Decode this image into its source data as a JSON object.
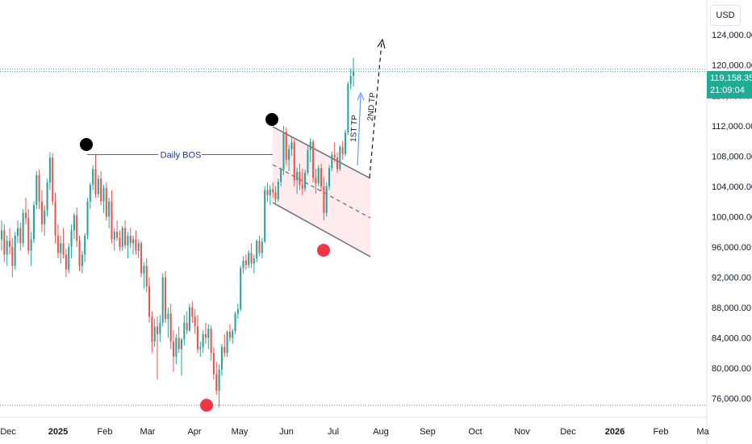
{
  "chart_data": {
    "type": "candlestick",
    "currency": "USD",
    "y_ticks": [
      "124,000.00",
      "120,000.00",
      "116,000.00",
      "112,000.00",
      "108,000.00",
      "104,000.00",
      "100,000.00",
      "96,000.00",
      "92,000.00",
      "88,000.00",
      "84,000.00",
      "80,000.00",
      "76,000.00"
    ],
    "y_tick_values": [
      124000,
      120000,
      116000,
      112000,
      108000,
      104000,
      100000,
      96000,
      92000,
      88000,
      84000,
      80000,
      76000
    ],
    "ylim": [
      73500,
      128500
    ],
    "x_ticks": [
      {
        "label": "Dec",
        "bold": false
      },
      {
        "label": "2025",
        "bold": true
      },
      {
        "label": "Feb",
        "bold": false
      },
      {
        "label": "Mar",
        "bold": false
      },
      {
        "label": "Apr",
        "bold": false
      },
      {
        "label": "May",
        "bold": false
      },
      {
        "label": "Jun",
        "bold": false
      },
      {
        "label": "Jul",
        "bold": false
      },
      {
        "label": "Aug",
        "bold": false
      },
      {
        "label": "Sep",
        "bold": false
      },
      {
        "label": "Oct",
        "bold": false
      },
      {
        "label": "Nov",
        "bold": false
      },
      {
        "label": "Dec",
        "bold": false
      },
      {
        "label": "2026",
        "bold": true
      },
      {
        "label": "Feb",
        "bold": false
      },
      {
        "label": "Ma",
        "bold": false
      }
    ],
    "last_price": "119,158.35",
    "countdown": "21:09:04",
    "last_price_value": 119158,
    "low_line_value": 75100,
    "annotations": {
      "daily_bos": "Daily BOS",
      "tp1": "1ST TP",
      "tp2": "2ND TP",
      "bos_level": 108200
    },
    "colors": {
      "up": "#26a69a",
      "down": "#ef5350",
      "price_tag": "#22ab94",
      "channel_fill": "#fde8ea",
      "marker_black": "#000000",
      "marker_red": "#f23645",
      "bos_line": "#2962ff"
    },
    "candles": [
      [
        97000,
        99500,
        95500,
        98200
      ],
      [
        98200,
        99000,
        94000,
        95000
      ],
      [
        95000,
        97500,
        93500,
        96800
      ],
      [
        96800,
        98500,
        95000,
        96000
      ],
      [
        96000,
        97200,
        92000,
        93500
      ],
      [
        93500,
        98000,
        93000,
        97500
      ],
      [
        97500,
        99500,
        96500,
        98500
      ],
      [
        98500,
        99200,
        95500,
        96500
      ],
      [
        96500,
        101000,
        96000,
        100500
      ],
      [
        100500,
        102500,
        99000,
        99800
      ],
      [
        99800,
        101000,
        95000,
        95500
      ],
      [
        95500,
        98000,
        93500,
        97000
      ],
      [
        97000,
        102000,
        96500,
        101500
      ],
      [
        101500,
        106000,
        101000,
        105500
      ],
      [
        105500,
        106200,
        101000,
        102000
      ],
      [
        102000,
        103500,
        98000,
        99000
      ],
      [
        99000,
        101500,
        97500,
        100800
      ],
      [
        100800,
        105000,
        100000,
        104500
      ],
      [
        104500,
        108500,
        103500,
        107800
      ],
      [
        107800,
        108400,
        101500,
        102000
      ],
      [
        102000,
        103200,
        96500,
        97500
      ],
      [
        97500,
        99000,
        94500,
        95200
      ],
      [
        95200,
        97500,
        93800,
        96500
      ],
      [
        96500,
        98500,
        94500,
        95000
      ],
      [
        95000,
        95800,
        92000,
        93000
      ],
      [
        93000,
        96500,
        92500,
        96000
      ],
      [
        96000,
        99000,
        94500,
        98200
      ],
      [
        98200,
        100500,
        97000,
        100200
      ],
      [
        100200,
        101200,
        96000,
        96800
      ],
      [
        96800,
        97500,
        92800,
        93500
      ],
      [
        93500,
        95500,
        92500,
        95000
      ],
      [
        95000,
        97800,
        94000,
        97500
      ],
      [
        97500,
        102500,
        97000,
        102000
      ],
      [
        102000,
        104500,
        101000,
        104200
      ],
      [
        104200,
        106800,
        103500,
        106300
      ],
      [
        106300,
        108300,
        102500,
        103000
      ],
      [
        103000,
        105500,
        102500,
        105000
      ],
      [
        105000,
        106000,
        101500,
        102000
      ],
      [
        102000,
        104200,
        100500,
        103800
      ],
      [
        103800,
        104500,
        99500,
        100000
      ],
      [
        100000,
        102500,
        98500,
        102000
      ],
      [
        102000,
        103500,
        96500,
        97000
      ],
      [
        97000,
        98500,
        95500,
        98000
      ],
      [
        98000,
        99500,
        96800,
        97200
      ],
      [
        97200,
        98200,
        95500,
        96000
      ],
      [
        96000,
        98800,
        95500,
        98500
      ],
      [
        98500,
        99500,
        95800,
        96200
      ],
      [
        96200,
        98000,
        94500,
        97500
      ],
      [
        97500,
        98500,
        95800,
        96500
      ],
      [
        96500,
        97500,
        95000,
        97000
      ],
      [
        97000,
        98200,
        95000,
        95500
      ],
      [
        95500,
        97000,
        94500,
        96500
      ],
      [
        96500,
        96800,
        92000,
        92500
      ],
      [
        92500,
        94000,
        90500,
        93500
      ],
      [
        93500,
        94500,
        90000,
        90800
      ],
      [
        90800,
        92000,
        86000,
        86800
      ],
      [
        86800,
        87500,
        82000,
        83500
      ],
      [
        83500,
        86500,
        82800,
        85500
      ],
      [
        85500,
        86800,
        78500,
        84500
      ],
      [
        84500,
        87000,
        83500,
        86000
      ],
      [
        86000,
        92500,
        85500,
        92000
      ],
      [
        92000,
        92800,
        86000,
        86500
      ],
      [
        86500,
        88000,
        84000,
        87200
      ],
      [
        87200,
        88500,
        82500,
        83500
      ],
      [
        83500,
        85000,
        79500,
        81500
      ],
      [
        81500,
        84500,
        80500,
        84000
      ],
      [
        84000,
        85500,
        82000,
        82500
      ],
      [
        82500,
        84000,
        79000,
        83800
      ],
      [
        83800,
        87000,
        83000,
        86000
      ],
      [
        86000,
        87500,
        84500,
        85000
      ],
      [
        85000,
        88500,
        84800,
        88000
      ],
      [
        88000,
        88800,
        86000,
        86800
      ],
      [
        86800,
        87800,
        84500,
        85500
      ],
      [
        85500,
        87000,
        82000,
        82500
      ],
      [
        82500,
        83500,
        81500,
        82800
      ],
      [
        82800,
        85000,
        82000,
        84500
      ],
      [
        84500,
        86000,
        83200,
        84000
      ],
      [
        84000,
        85800,
        82500,
        85200
      ],
      [
        85200,
        85600,
        81000,
        82000
      ],
      [
        82000,
        82800,
        78500,
        79200
      ],
      [
        79200,
        80800,
        76500,
        77000
      ],
      [
        77000,
        80500,
        74800,
        79800
      ],
      [
        79800,
        83200,
        79000,
        82800
      ],
      [
        82800,
        84500,
        81500,
        82000
      ],
      [
        82000,
        85000,
        81500,
        84800
      ],
      [
        84800,
        85800,
        83500,
        84000
      ],
      [
        84000,
        85200,
        83200,
        84900
      ],
      [
        84900,
        87500,
        84500,
        87200
      ],
      [
        87200,
        88500,
        86500,
        87800
      ],
      [
        87800,
        93500,
        87500,
        93200
      ],
      [
        93200,
        94800,
        92500,
        94200
      ],
      [
        94200,
        95000,
        93000,
        93600
      ],
      [
        93600,
        95600,
        93200,
        95200
      ],
      [
        95200,
        96500,
        93200,
        93800
      ],
      [
        93800,
        95000,
        92500,
        94500
      ],
      [
        94500,
        97000,
        94000,
        96800
      ],
      [
        96800,
        97500,
        94800,
        95200
      ],
      [
        95200,
        97200,
        94500,
        96700
      ],
      [
        96700,
        104000,
        96500,
        103500
      ],
      [
        103500,
        104500,
        102000,
        102800
      ],
      [
        102800,
        104200,
        101500,
        103600
      ],
      [
        103600,
        104500,
        102500,
        103200
      ],
      [
        103200,
        104000,
        101800,
        102300
      ],
      [
        102300,
        105000,
        102000,
        104600
      ],
      [
        104600,
        106500,
        104000,
        106200
      ],
      [
        106200,
        112000,
        105500,
        111200
      ],
      [
        111200,
        111800,
        106800,
        107500
      ],
      [
        107500,
        109500,
        106000,
        108900
      ],
      [
        108900,
        110500,
        108000,
        109800
      ],
      [
        109800,
        110200,
        104000,
        104800
      ],
      [
        104800,
        106500,
        103000,
        105900
      ],
      [
        105900,
        107000,
        103500,
        104200
      ],
      [
        104200,
        106300,
        102800,
        103700
      ],
      [
        103700,
        106200,
        103300,
        105800
      ],
      [
        105800,
        109500,
        105500,
        108800
      ],
      [
        108800,
        110400,
        107200,
        109900
      ],
      [
        109900,
        110200,
        104500,
        105100
      ],
      [
        105100,
        106300,
        103000,
        104400
      ],
      [
        104400,
        106800,
        104000,
        106400
      ],
      [
        106400,
        107000,
        103400,
        104000
      ],
      [
        104000,
        105300,
        99500,
        100500
      ],
      [
        100500,
        104500,
        100000,
        104000
      ],
      [
        104000,
        106800,
        103500,
        106400
      ],
      [
        106400,
        108600,
        106000,
        108200
      ],
      [
        108200,
        109800,
        107200,
        107800
      ],
      [
        107800,
        108500,
        105800,
        106300
      ],
      [
        106300,
        109500,
        106000,
        109200
      ],
      [
        109200,
        110000,
        107500,
        108300
      ],
      [
        108300,
        111500,
        108000,
        111100
      ],
      [
        111100,
        117800,
        110800,
        117500
      ],
      [
        117500,
        119500,
        116800,
        118600
      ],
      [
        118600,
        121000,
        117200,
        119158
      ]
    ]
  }
}
